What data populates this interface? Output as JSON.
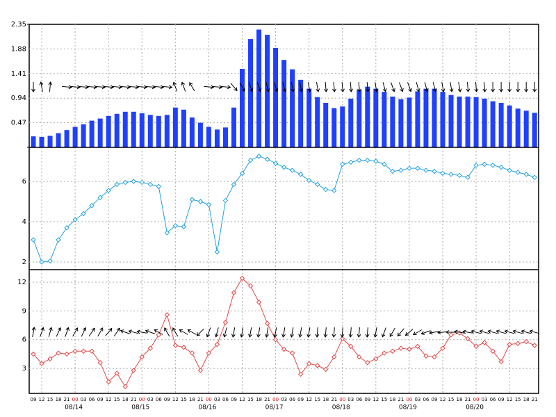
{
  "chart_data": [
    {
      "type": "bar",
      "color": "#2040ff",
      "categories": [
        "09",
        "12",
        "15",
        "18",
        "21",
        "00",
        "03",
        "06",
        "09",
        "12",
        "15",
        "18",
        "21",
        "00",
        "03",
        "06",
        "09",
        "12",
        "15",
        "18",
        "21",
        "00",
        "03",
        "06",
        "09",
        "12",
        "15",
        "18",
        "21",
        "00",
        "03",
        "06",
        "09",
        "12",
        "15",
        "18",
        "21",
        "00",
        "03",
        "06",
        "09",
        "12",
        "15",
        "18",
        "21",
        "00",
        "03",
        "06",
        "09",
        "12",
        "15",
        "18",
        "21",
        "00",
        "03",
        "06",
        "09",
        "12",
        "15",
        "18",
        "21"
      ],
      "dates": [
        "08/14",
        "08/15",
        "08/16",
        "08/17",
        "08/18",
        "08/19",
        "08/20"
      ],
      "values": [
        0.21,
        0.2,
        0.22,
        0.27,
        0.33,
        0.39,
        0.44,
        0.51,
        0.55,
        0.6,
        0.64,
        0.68,
        0.68,
        0.65,
        0.62,
        0.6,
        0.62,
        0.76,
        0.72,
        0.57,
        0.47,
        0.39,
        0.34,
        0.38,
        0.76,
        1.5,
        2.07,
        2.25,
        2.15,
        1.9,
        1.67,
        1.49,
        1.29,
        1.12,
        0.96,
        0.85,
        0.75,
        0.78,
        0.93,
        1.1,
        1.16,
        1.12,
        1.06,
        0.97,
        0.92,
        0.95,
        1.07,
        1.12,
        1.12,
        1.06,
        1.0,
        0.97,
        0.97,
        0.96,
        0.93,
        0.88,
        0.85,
        0.8,
        0.74,
        0.7,
        0.66
      ],
      "directions": [
        180,
        350,
        5,
        null,
        95,
        95,
        95,
        95,
        95,
        95,
        95,
        95,
        95,
        95,
        95,
        95,
        95,
        340,
        340,
        330,
        null,
        95,
        95,
        95,
        140,
        150,
        160,
        160,
        165,
        165,
        165,
        170,
        170,
        170,
        170,
        175,
        175,
        175,
        175,
        175,
        175,
        170,
        165,
        160,
        160,
        160,
        165,
        165,
        165,
        170,
        170,
        170,
        175,
        175,
        175,
        180,
        180,
        180,
        180,
        180,
        180
      ],
      "ylim": [
        0,
        2.35
      ],
      "yticks": [
        0,
        0.47,
        0.94,
        1.41,
        1.88,
        2.35
      ],
      "grid": true
    },
    {
      "type": "line",
      "color": "#20a0e0",
      "values": [
        3.1,
        2.0,
        2.05,
        3.1,
        3.7,
        4.1,
        4.4,
        4.8,
        5.2,
        5.55,
        5.85,
        5.95,
        6.0,
        5.95,
        5.85,
        5.75,
        3.45,
        3.8,
        3.75,
        5.1,
        5.0,
        4.85,
        2.5,
        5.05,
        5.85,
        6.4,
        7.05,
        7.25,
        7.1,
        6.9,
        6.7,
        6.55,
        6.35,
        6.05,
        5.85,
        5.6,
        5.55,
        6.85,
        6.95,
        7.05,
        7.05,
        7.0,
        6.85,
        6.5,
        6.55,
        6.65,
        6.65,
        6.55,
        6.5,
        6.4,
        6.35,
        6.3,
        6.2,
        6.8,
        6.85,
        6.8,
        6.7,
        6.55,
        6.45,
        6.35,
        6.2
      ],
      "ylim": [
        1.62,
        7.69
      ],
      "yticks": [
        2,
        4,
        6
      ],
      "grid": true
    },
    {
      "type": "line",
      "color": "#e04848",
      "values": [
        4.5,
        3.5,
        4.0,
        4.6,
        4.5,
        4.8,
        4.8,
        4.8,
        3.6,
        1.6,
        2.5,
        1.1,
        2.8,
        4.2,
        5.1,
        6.5,
        8.6,
        5.4,
        5.2,
        4.6,
        2.8,
        4.6,
        5.5,
        7.8,
        10.9,
        12.4,
        11.6,
        9.9,
        7.7,
        6.0,
        5.0,
        4.6,
        2.4,
        3.5,
        3.3,
        2.9,
        4.2,
        6.1,
        5.3,
        4.2,
        3.6,
        4.0,
        4.6,
        4.8,
        5.1,
        5.0,
        5.3,
        4.3,
        4.2,
        5.1,
        6.5,
        6.7,
        6.1,
        5.3,
        5.7,
        4.8,
        3.7,
        5.5,
        5.6,
        5.8,
        5.4
      ],
      "directions": [
        10,
        20,
        15,
        25,
        20,
        30,
        25,
        35,
        30,
        40,
        35,
        290,
        285,
        280,
        290,
        300,
        330,
        330,
        300,
        300,
        225,
        200,
        195,
        195,
        190,
        190,
        190,
        190,
        190,
        190,
        190,
        190,
        190,
        190,
        185,
        185,
        185,
        185,
        185,
        185,
        185,
        190,
        200,
        210,
        220,
        230,
        240,
        250,
        260,
        265,
        270,
        280,
        280,
        285,
        285,
        285,
        285,
        285,
        285,
        285,
        285
      ],
      "ylim": [
        0.4,
        13.3
      ],
      "yticks": [
        3,
        6,
        9,
        12
      ],
      "grid": true
    }
  ]
}
